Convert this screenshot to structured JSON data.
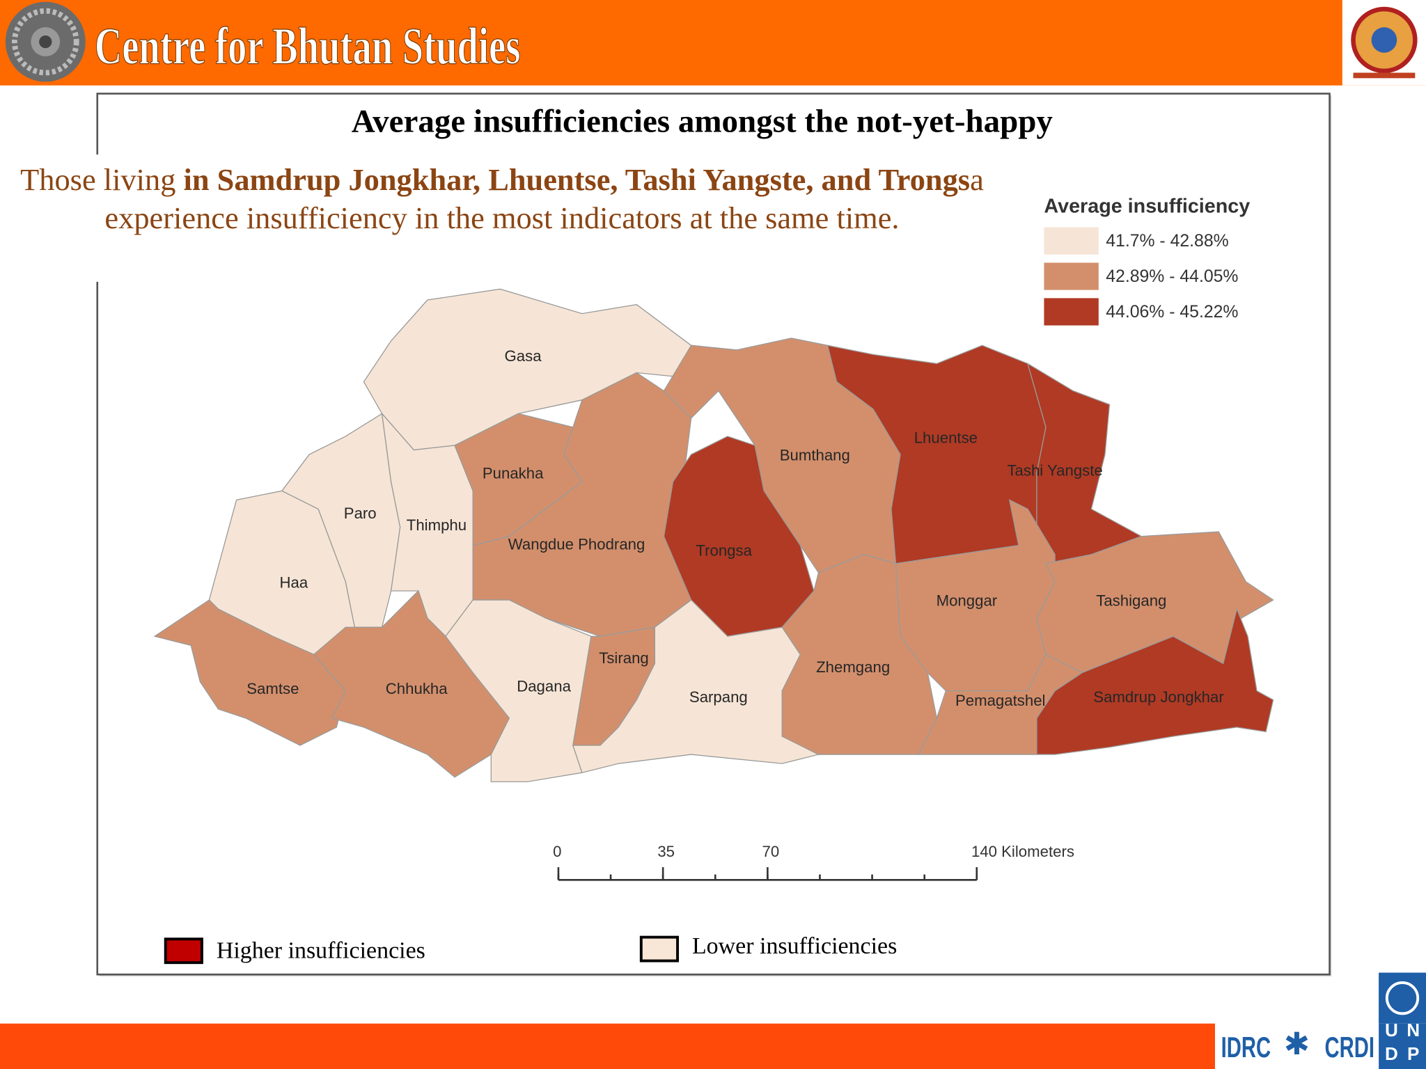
{
  "header": {
    "title": "Centre for Bhutan Studies"
  },
  "map": {
    "title": "Average insufficiencies amongst the not-yet-happy",
    "description": [
      {
        "text": "Those living ",
        "bold": false
      },
      {
        "text": "in Samdrup Jongkhar, Lhuentse, Tashi Yangste, and Trongs",
        "bold": true
      },
      {
        "text": "a experience insufficiency in the most indicators at the same time.",
        "bold": false
      }
    ],
    "legend": {
      "title": "Average insufficiency",
      "items": [
        {
          "label": "41.7% - 42.88%",
          "color": "#f6e5d6"
        },
        {
          "label": "42.89% - 44.05%",
          "color": "#d38f6c"
        },
        {
          "label": "44.06% - 45.22%",
          "color": "#b03a24"
        }
      ]
    },
    "districts": [
      {
        "name": "Gasa",
        "class": 0
      },
      {
        "name": "Haa",
        "class": 0
      },
      {
        "name": "Paro",
        "class": 0
      },
      {
        "name": "Thimphu",
        "class": 0
      },
      {
        "name": "Punakha",
        "class": 1
      },
      {
        "name": "Wangdue Phodrang",
        "class": 1
      },
      {
        "name": "Bumthang",
        "class": 1
      },
      {
        "name": "Trongsa",
        "class": 2
      },
      {
        "name": "Lhuentse",
        "class": 2
      },
      {
        "name": "Tashi Yangste",
        "class": 2
      },
      {
        "name": "Samtse",
        "class": 1
      },
      {
        "name": "Chhukha",
        "class": 1
      },
      {
        "name": "Dagana",
        "class": 0
      },
      {
        "name": "Tsirang",
        "class": 1
      },
      {
        "name": "Sarpang",
        "class": 0
      },
      {
        "name": "Zhemgang",
        "class": 1
      },
      {
        "name": "Monggar",
        "class": 1
      },
      {
        "name": "Tashigang",
        "class": 1
      },
      {
        "name": "Pemagatshel",
        "class": 1
      },
      {
        "name": "Samdrup Jongkhar",
        "class": 2
      }
    ],
    "scale_bar": {
      "ticks": [
        0,
        35,
        70,
        {
          "value": 140,
          "label": "140 Kilometers"
        }
      ]
    },
    "key": [
      {
        "label": "Higher insufficiencies",
        "color": "#c00000"
      },
      {
        "label": "Lower insufficiencies",
        "color": "#f8e6d6"
      }
    ]
  },
  "footer": {
    "logo_text": [
      "IDRC",
      "CRDI"
    ],
    "undp_letters": [
      "U",
      "N",
      "D",
      "P"
    ]
  }
}
